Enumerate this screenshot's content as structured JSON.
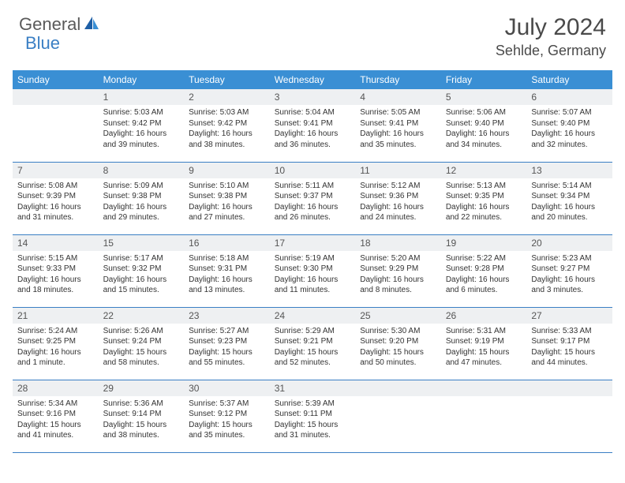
{
  "brand": {
    "part1": "General",
    "part2": "Blue"
  },
  "title": {
    "month": "July 2024",
    "location": "Sehlde, Germany"
  },
  "colors": {
    "header_bg": "#3a8fd4",
    "header_text": "#ffffff",
    "border": "#3a7fc4",
    "daynum_bg": "#eef0f2",
    "body_text": "#333333",
    "brand_gray": "#5a5a5a",
    "brand_blue": "#3a7fc4"
  },
  "weekdays": [
    "Sunday",
    "Monday",
    "Tuesday",
    "Wednesday",
    "Thursday",
    "Friday",
    "Saturday"
  ],
  "layout": {
    "first_weekday_index": 1,
    "days_in_month": 31,
    "rows": 5,
    "cols": 7
  },
  "days": {
    "1": {
      "sunrise": "Sunrise: 5:03 AM",
      "sunset": "Sunset: 9:42 PM",
      "daylight": "Daylight: 16 hours and 39 minutes."
    },
    "2": {
      "sunrise": "Sunrise: 5:03 AM",
      "sunset": "Sunset: 9:42 PM",
      "daylight": "Daylight: 16 hours and 38 minutes."
    },
    "3": {
      "sunrise": "Sunrise: 5:04 AM",
      "sunset": "Sunset: 9:41 PM",
      "daylight": "Daylight: 16 hours and 36 minutes."
    },
    "4": {
      "sunrise": "Sunrise: 5:05 AM",
      "sunset": "Sunset: 9:41 PM",
      "daylight": "Daylight: 16 hours and 35 minutes."
    },
    "5": {
      "sunrise": "Sunrise: 5:06 AM",
      "sunset": "Sunset: 9:40 PM",
      "daylight": "Daylight: 16 hours and 34 minutes."
    },
    "6": {
      "sunrise": "Sunrise: 5:07 AM",
      "sunset": "Sunset: 9:40 PM",
      "daylight": "Daylight: 16 hours and 32 minutes."
    },
    "7": {
      "sunrise": "Sunrise: 5:08 AM",
      "sunset": "Sunset: 9:39 PM",
      "daylight": "Daylight: 16 hours and 31 minutes."
    },
    "8": {
      "sunrise": "Sunrise: 5:09 AM",
      "sunset": "Sunset: 9:38 PM",
      "daylight": "Daylight: 16 hours and 29 minutes."
    },
    "9": {
      "sunrise": "Sunrise: 5:10 AM",
      "sunset": "Sunset: 9:38 PM",
      "daylight": "Daylight: 16 hours and 27 minutes."
    },
    "10": {
      "sunrise": "Sunrise: 5:11 AM",
      "sunset": "Sunset: 9:37 PM",
      "daylight": "Daylight: 16 hours and 26 minutes."
    },
    "11": {
      "sunrise": "Sunrise: 5:12 AM",
      "sunset": "Sunset: 9:36 PM",
      "daylight": "Daylight: 16 hours and 24 minutes."
    },
    "12": {
      "sunrise": "Sunrise: 5:13 AM",
      "sunset": "Sunset: 9:35 PM",
      "daylight": "Daylight: 16 hours and 22 minutes."
    },
    "13": {
      "sunrise": "Sunrise: 5:14 AM",
      "sunset": "Sunset: 9:34 PM",
      "daylight": "Daylight: 16 hours and 20 minutes."
    },
    "14": {
      "sunrise": "Sunrise: 5:15 AM",
      "sunset": "Sunset: 9:33 PM",
      "daylight": "Daylight: 16 hours and 18 minutes."
    },
    "15": {
      "sunrise": "Sunrise: 5:17 AM",
      "sunset": "Sunset: 9:32 PM",
      "daylight": "Daylight: 16 hours and 15 minutes."
    },
    "16": {
      "sunrise": "Sunrise: 5:18 AM",
      "sunset": "Sunset: 9:31 PM",
      "daylight": "Daylight: 16 hours and 13 minutes."
    },
    "17": {
      "sunrise": "Sunrise: 5:19 AM",
      "sunset": "Sunset: 9:30 PM",
      "daylight": "Daylight: 16 hours and 11 minutes."
    },
    "18": {
      "sunrise": "Sunrise: 5:20 AM",
      "sunset": "Sunset: 9:29 PM",
      "daylight": "Daylight: 16 hours and 8 minutes."
    },
    "19": {
      "sunrise": "Sunrise: 5:22 AM",
      "sunset": "Sunset: 9:28 PM",
      "daylight": "Daylight: 16 hours and 6 minutes."
    },
    "20": {
      "sunrise": "Sunrise: 5:23 AM",
      "sunset": "Sunset: 9:27 PM",
      "daylight": "Daylight: 16 hours and 3 minutes."
    },
    "21": {
      "sunrise": "Sunrise: 5:24 AM",
      "sunset": "Sunset: 9:25 PM",
      "daylight": "Daylight: 16 hours and 1 minute."
    },
    "22": {
      "sunrise": "Sunrise: 5:26 AM",
      "sunset": "Sunset: 9:24 PM",
      "daylight": "Daylight: 15 hours and 58 minutes."
    },
    "23": {
      "sunrise": "Sunrise: 5:27 AM",
      "sunset": "Sunset: 9:23 PM",
      "daylight": "Daylight: 15 hours and 55 minutes."
    },
    "24": {
      "sunrise": "Sunrise: 5:29 AM",
      "sunset": "Sunset: 9:21 PM",
      "daylight": "Daylight: 15 hours and 52 minutes."
    },
    "25": {
      "sunrise": "Sunrise: 5:30 AM",
      "sunset": "Sunset: 9:20 PM",
      "daylight": "Daylight: 15 hours and 50 minutes."
    },
    "26": {
      "sunrise": "Sunrise: 5:31 AM",
      "sunset": "Sunset: 9:19 PM",
      "daylight": "Daylight: 15 hours and 47 minutes."
    },
    "27": {
      "sunrise": "Sunrise: 5:33 AM",
      "sunset": "Sunset: 9:17 PM",
      "daylight": "Daylight: 15 hours and 44 minutes."
    },
    "28": {
      "sunrise": "Sunrise: 5:34 AM",
      "sunset": "Sunset: 9:16 PM",
      "daylight": "Daylight: 15 hours and 41 minutes."
    },
    "29": {
      "sunrise": "Sunrise: 5:36 AM",
      "sunset": "Sunset: 9:14 PM",
      "daylight": "Daylight: 15 hours and 38 minutes."
    },
    "30": {
      "sunrise": "Sunrise: 5:37 AM",
      "sunset": "Sunset: 9:12 PM",
      "daylight": "Daylight: 15 hours and 35 minutes."
    },
    "31": {
      "sunrise": "Sunrise: 5:39 AM",
      "sunset": "Sunset: 9:11 PM",
      "daylight": "Daylight: 15 hours and 31 minutes."
    }
  }
}
